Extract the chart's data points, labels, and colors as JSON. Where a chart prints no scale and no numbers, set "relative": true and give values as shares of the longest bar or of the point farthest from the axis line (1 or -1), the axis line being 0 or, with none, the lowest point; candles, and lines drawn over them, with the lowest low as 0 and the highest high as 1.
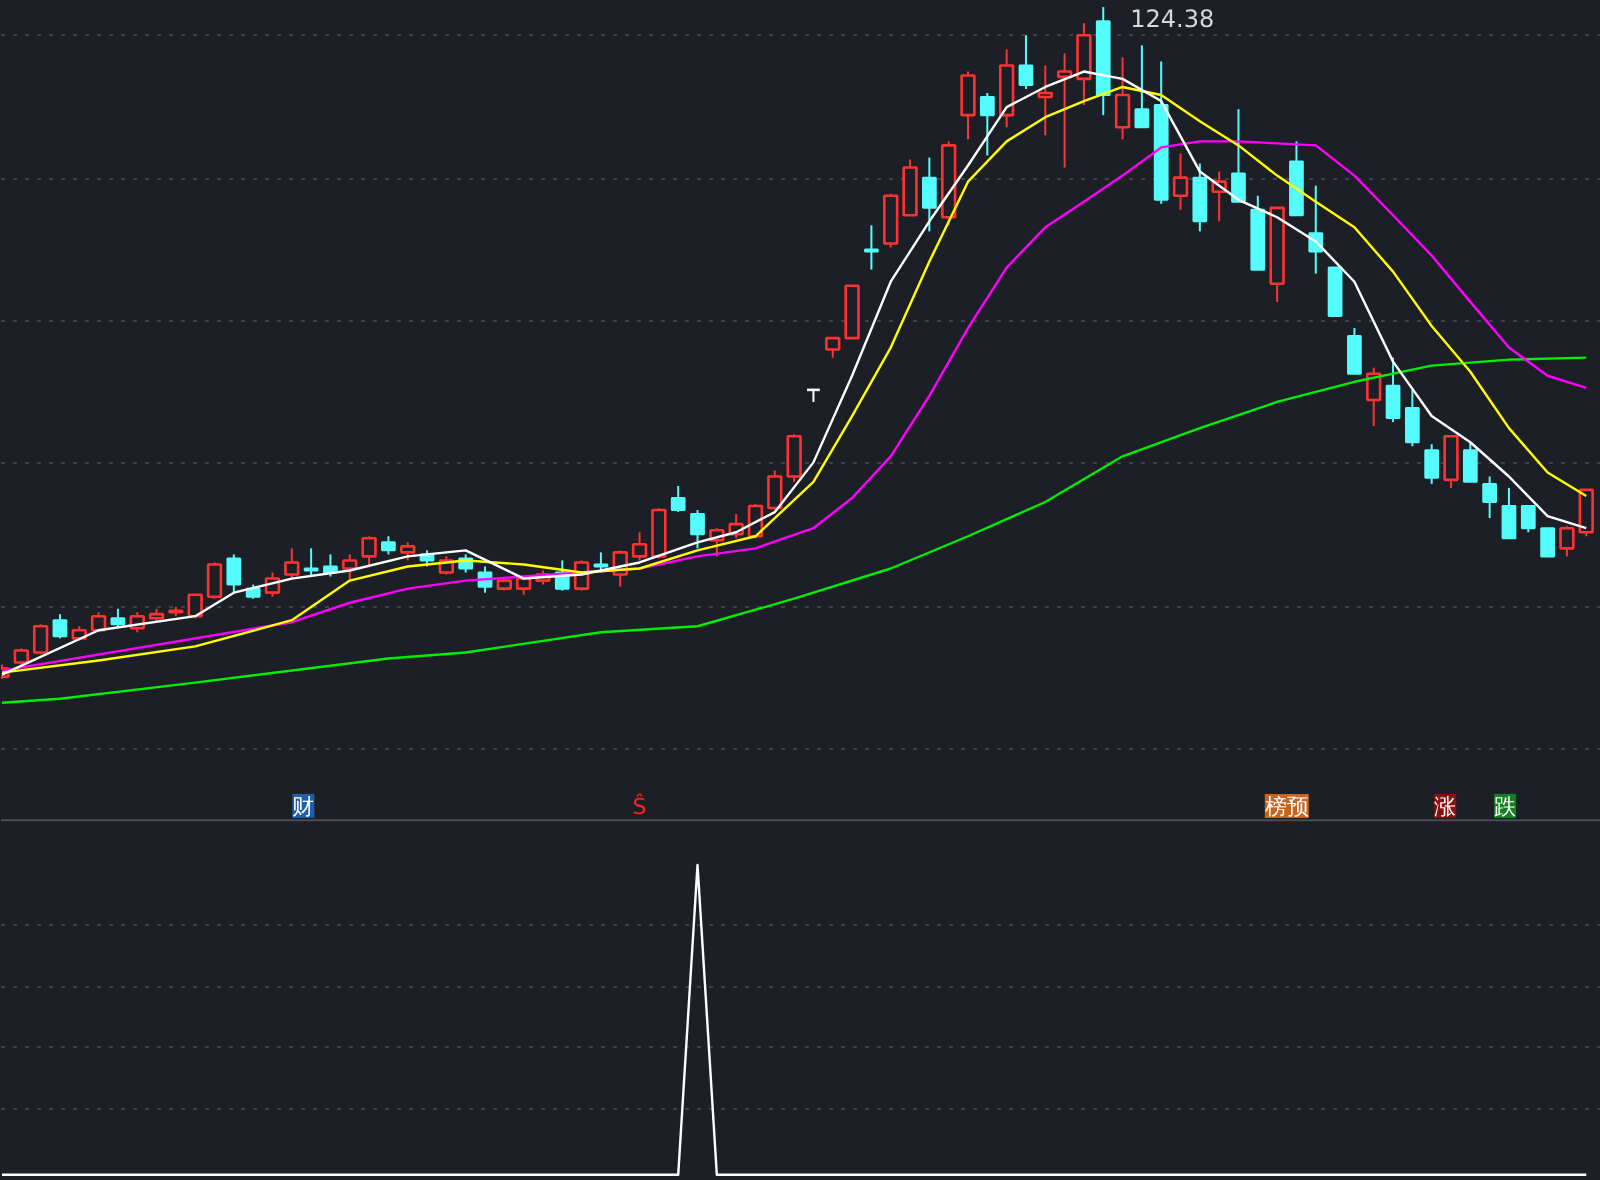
{
  "chart_data": [
    {
      "type": "candlestick",
      "relative": true,
      "grid": true,
      "categories": [
        null,
        null,
        null,
        null,
        null,
        null,
        null,
        null,
        null,
        null,
        null,
        null,
        null,
        null,
        null,
        null,
        null,
        null,
        null,
        null,
        null,
        null,
        null,
        null,
        null,
        null,
        null,
        null,
        null,
        null,
        null,
        null,
        null,
        null,
        null,
        null,
        null,
        null,
        null,
        null,
        null,
        null,
        null,
        null,
        null,
        null,
        null,
        null,
        null,
        null,
        null,
        null,
        null,
        null,
        null,
        null,
        null,
        null,
        null,
        null,
        null,
        null,
        null,
        null,
        null,
        null,
        null,
        null,
        null,
        null,
        null,
        null,
        null,
        null,
        null,
        null,
        null,
        null,
        null,
        null,
        null,
        null,
        null
      ],
      "ohlc": [
        [
          0.003,
          0.021,
          0,
          0.015
        ],
        [
          0.024,
          0.045,
          0.021,
          0.042
        ],
        [
          0.039,
          0.081,
          0.036,
          0.078
        ],
        [
          0.087,
          0.096,
          0.06,
          0.063
        ],
        [
          0.06,
          0.078,
          0.057,
          0.072
        ],
        [
          0.072,
          0.099,
          0.069,
          0.093
        ],
        [
          0.09,
          0.104,
          0.078,
          0.081
        ],
        [
          0.075,
          0.099,
          0.069,
          0.093
        ],
        [
          0.09,
          0.104,
          0.084,
          0.096
        ],
        [
          0.099,
          0.107,
          0.093,
          0.101
        ],
        [
          0.093,
          0.125,
          0.09,
          0.125
        ],
        [
          0.122,
          0.173,
          0.119,
          0.17
        ],
        [
          0.179,
          0.185,
          0.128,
          0.14
        ],
        [
          0.134,
          0.14,
          0.119,
          0.122
        ],
        [
          0.128,
          0.158,
          0.122,
          0.149
        ],
        [
          0.155,
          0.194,
          0.149,
          0.173
        ],
        [
          0.164,
          0.194,
          0.152,
          0.161
        ],
        [
          0.167,
          0.185,
          0.152,
          0.158
        ],
        [
          0.164,
          0.185,
          0.146,
          0.176
        ],
        [
          0.182,
          0.212,
          0.167,
          0.209
        ],
        [
          0.203,
          0.212,
          0.185,
          0.191
        ],
        [
          0.188,
          0.203,
          0.176,
          0.197
        ],
        [
          0.185,
          0.191,
          0.167,
          0.176
        ],
        [
          0.158,
          0.182,
          0.155,
          0.176
        ],
        [
          0.179,
          0.185,
          0.158,
          0.164
        ],
        [
          0.158,
          0.167,
          0.128,
          0.137
        ],
        [
          0.134,
          0.149,
          0.131,
          0.146
        ],
        [
          0.134,
          0.152,
          0.125,
          0.149
        ],
        [
          0.146,
          0.161,
          0.14,
          0.155
        ],
        [
          0.158,
          0.176,
          0.131,
          0.134
        ],
        [
          0.134,
          0.176,
          0.131,
          0.173
        ],
        [
          0.17,
          0.188,
          0.158,
          0.167
        ],
        [
          0.155,
          0.191,
          0.137,
          0.188
        ],
        [
          0.182,
          0.218,
          0.176,
          0.2
        ],
        [
          0.182,
          0.254,
          0.179,
          0.251
        ],
        [
          0.269,
          0.287,
          0.248,
          0.251
        ],
        [
          0.245,
          0.251,
          0.194,
          0.215
        ],
        [
          0.206,
          0.224,
          0.182,
          0.221
        ],
        [
          0.215,
          0.245,
          0.209,
          0.23
        ],
        [
          0.212,
          0.26,
          0.209,
          0.257
        ],
        [
          0.254,
          0.31,
          0.251,
          0.301
        ],
        [
          0.301,
          0.364,
          0.293,
          0.361
        ],
        [
          0.43,
          0.43,
          0.412,
          0.43
        ],
        [
          0.49,
          0.507,
          0.478,
          0.507
        ],
        [
          0.507,
          0.585,
          0.507,
          0.585
        ],
        [
          0.639,
          0.675,
          0.609,
          0.636
        ],
        [
          0.648,
          0.722,
          0.642,
          0.719
        ],
        [
          0.69,
          0.773,
          0.69,
          0.761
        ],
        [
          0.746,
          0.776,
          0.666,
          0.701
        ],
        [
          0.687,
          0.8,
          0.675,
          0.794
        ],
        [
          0.839,
          0.904,
          0.803,
          0.898
        ],
        [
          0.866,
          0.872,
          0.779,
          0.839
        ],
        [
          0.839,
          0.937,
          0.821,
          0.913
        ],
        [
          0.913,
          0.958,
          0.878,
          0.884
        ],
        [
          0.866,
          0.913,
          0.809,
          0.872
        ],
        [
          0.896,
          0.931,
          0.761,
          0.904
        ],
        [
          0.893,
          0.976,
          0.854,
          0.958
        ],
        [
          0.979,
          1,
          0.839,
          0.869
        ],
        [
          0.821,
          0.925,
          0.803,
          0.869
        ],
        [
          0.848,
          0.943,
          0.821,
          0.821
        ],
        [
          0.854,
          0.919,
          0.707,
          0.713
        ],
        [
          0.719,
          0.782,
          0.698,
          0.746
        ],
        [
          0.746,
          0.767,
          0.666,
          0.681
        ],
        [
          0.725,
          0.755,
          0.681,
          0.74
        ],
        [
          0.752,
          0.848,
          0.71,
          0.71
        ],
        [
          0.698,
          0.719,
          0.609,
          0.609
        ],
        [
          0.588,
          0.701,
          0.561,
          0.701
        ],
        [
          0.77,
          0.8,
          0.69,
          0.69
        ],
        [
          0.663,
          0.734,
          0.603,
          0.636
        ],
        [
          0.612,
          0.612,
          0.54,
          0.54
        ],
        [
          0.51,
          0.522,
          0.454,
          0.454
        ],
        [
          0.415,
          0.463,
          0.376,
          0.454
        ],
        [
          0.436,
          0.478,
          0.382,
          0.388
        ],
        [
          0.403,
          0.43,
          0.346,
          0.352
        ],
        [
          0.34,
          0.349,
          0.29,
          0.299
        ],
        [
          0.296,
          0.361,
          0.284,
          0.361
        ],
        [
          0.34,
          0.352,
          0.293,
          0.293
        ],
        [
          0.29,
          0.301,
          0.239,
          0.263
        ],
        [
          0.257,
          0.284,
          0.209,
          0.209
        ],
        [
          0.257,
          0.257,
          0.218,
          0.224
        ],
        [
          0.224,
          0.224,
          0.182,
          0.182
        ],
        [
          0.194,
          0.227,
          0.182,
          0.224
        ],
        [
          0.218,
          0.281,
          0.212,
          0.281
        ]
      ],
      "series": [
        {
          "type": "line",
          "color": "#ffffff",
          "values": [
            0.006,
            null,
            null,
            null,
            null,
            0.072,
            null,
            null,
            null,
            null,
            0.093,
            null,
            0.128,
            null,
            null,
            0.149,
            null,
            null,
            0.161,
            null,
            null,
            0.182,
            null,
            null,
            0.191,
            null,
            null,
            0.149,
            null,
            null,
            0.155,
            null,
            null,
            0.173,
            null,
            null,
            0.203,
            null,
            0.218,
            null,
            0.248,
            null,
            0.322,
            null,
            0.451,
            null,
            0.591,
            null,
            0.681,
            null,
            0.764,
            null,
            0.851,
            null,
            0.881,
            null,
            0.904,
            null,
            0.893,
            null,
            0.86,
            null,
            0.755,
            null,
            0.713,
            null,
            0.687,
            null,
            0.651,
            null,
            0.591,
            null,
            0.472,
            null,
            0.391,
            null,
            0.352,
            null,
            0.301,
            null,
            0.242,
            null,
            0.224
          ]
        },
        {
          "type": "line",
          "color": "#ffff00",
          "values": [
            0.009,
            null,
            null,
            null,
            null,
            0.027,
            null,
            null,
            null,
            null,
            0.048,
            null,
            null,
            null,
            null,
            0.087,
            null,
            null,
            0.146,
            null,
            null,
            0.167,
            null,
            null,
            0.176,
            null,
            null,
            0.17,
            null,
            null,
            0.158,
            null,
            null,
            0.164,
            null,
            null,
            0.191,
            null,
            null,
            0.212,
            null,
            null,
            0.293,
            null,
            0.391,
            null,
            0.493,
            null,
            0.621,
            null,
            0.74,
            null,
            0.8,
            null,
            0.836,
            null,
            0.86,
            null,
            0.881,
            null,
            0.869,
            null,
            0.83,
            null,
            0.794,
            null,
            0.749,
            null,
            0.71,
            null,
            0.672,
            null,
            0.606,
            null,
            0.525,
            null,
            0.457,
            null,
            0.373,
            null,
            0.307,
            null,
            0.272
          ]
        },
        {
          "type": "line",
          "color": "#ff00ff",
          "values": [
            0.012,
            null,
            null,
            null,
            null,
            null,
            null,
            null,
            null,
            null,
            null,
            null,
            null,
            null,
            null,
            0.084,
            null,
            null,
            0.113,
            null,
            null,
            0.134,
            null,
            null,
            0.146,
            null,
            null,
            0.152,
            null,
            null,
            0.158,
            null,
            null,
            0.164,
            null,
            null,
            0.182,
            null,
            null,
            0.194,
            null,
            null,
            0.224,
            null,
            0.269,
            null,
            0.331,
            null,
            0.421,
            null,
            0.522,
            null,
            0.612,
            null,
            0.672,
            null,
            0.71,
            null,
            0.749,
            null,
            0.791,
            null,
            0.8,
            null,
            0.8,
            null,
            0.797,
            null,
            0.794,
            null,
            0.749,
            null,
            0.69,
            null,
            0.63,
            null,
            0.561,
            null,
            0.493,
            null,
            0.451,
            null,
            0.433
          ]
        },
        {
          "type": "line",
          "color": "#00ee00",
          "values": [
            -0.036,
            null,
            null,
            -0.03,
            null,
            null,
            null,
            null,
            null,
            null,
            -0.006,
            null,
            null,
            null,
            null,
            null,
            null,
            null,
            null,
            null,
            0.03,
            null,
            null,
            null,
            0.039,
            null,
            null,
            null,
            null,
            null,
            null,
            0.069,
            null,
            null,
            null,
            null,
            0.078,
            null,
            null,
            null,
            null,
            0.119,
            null,
            null,
            null,
            null,
            0.164,
            null,
            null,
            null,
            0.212,
            null,
            null,
            null,
            0.263,
            null,
            null,
            null,
            0.331,
            null,
            null,
            null,
            0.373,
            null,
            null,
            null,
            0.412,
            null,
            null,
            null,
            0.442,
            null,
            null,
            null,
            0.466,
            null,
            null,
            null,
            0.475,
            null,
            null,
            null,
            0.478
          ]
        }
      ],
      "annotations": [
        "124.38",
        "财",
        "Ŝ",
        "榜预",
        "涨",
        "跌"
      ]
    },
    {
      "type": "line",
      "relative": true,
      "grid": true,
      "color": "#ffffff",
      "categories": [
        null,
        null,
        null,
        null,
        null,
        null,
        null,
        null,
        null,
        null,
        null,
        null,
        null,
        null,
        null,
        null,
        null,
        null,
        null,
        null,
        null,
        null,
        null,
        null,
        null,
        null,
        null,
        null,
        null,
        null,
        null,
        null,
        null,
        null,
        null,
        null,
        null,
        null,
        null,
        null,
        null,
        null,
        null,
        null,
        null,
        null,
        null,
        null,
        null,
        null,
        null,
        null,
        null,
        null,
        null,
        null,
        null,
        null,
        null,
        null,
        null,
        null,
        null,
        null,
        null,
        null,
        null,
        null,
        null,
        null,
        null,
        null,
        null,
        null,
        null,
        null,
        null,
        null,
        null,
        null,
        null,
        null,
        null
      ],
      "values": [
        0,
        0,
        0,
        0,
        0,
        0,
        0,
        0,
        0,
        0,
        0,
        0,
        0,
        0,
        0,
        0,
        0,
        0,
        0,
        0,
        0,
        0,
        0,
        0,
        0,
        0,
        0,
        0,
        0,
        0,
        0,
        0,
        0,
        0,
        0,
        0,
        1,
        0,
        0,
        0,
        0,
        0,
        0,
        0,
        0,
        0,
        0,
        0,
        0,
        0,
        0,
        0,
        0,
        0,
        0,
        0,
        0,
        0,
        0,
        0,
        0,
        0,
        0,
        0,
        0,
        0,
        0,
        0,
        0,
        0,
        0,
        0,
        0,
        0,
        0,
        0,
        0,
        0,
        0,
        0,
        0,
        0,
        0
      ]
    }
  ]
}
